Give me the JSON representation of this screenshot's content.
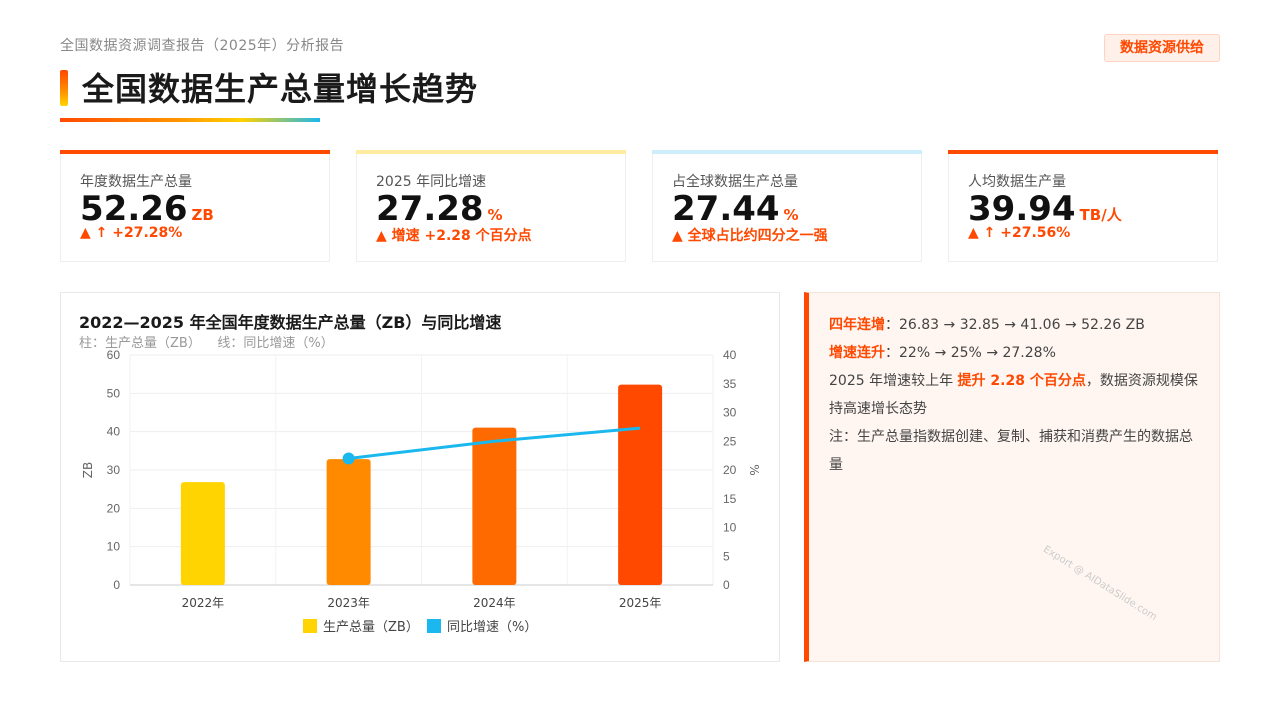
{
  "header": {
    "subtitle": "全国数据资源调查报告（2025年）分析报告",
    "title": "全国数据生产总量增长趋势",
    "tag": "数据资源供给"
  },
  "kpis": [
    {
      "label": "年度数据生产总量",
      "value": "52.26",
      "unit": "ZB",
      "note": "▲ ↑ +27.28%",
      "accent": "#ff4800",
      "tint": "#ffe9df"
    },
    {
      "label": "2025 年同比增速",
      "value": "27.28",
      "unit": "%",
      "note": "▲ 增速 +2.28 个百分点",
      "accent": "#ffeca0",
      "tint": "#fff4cc"
    },
    {
      "label": "占全球数据生产总量",
      "value": "27.44",
      "unit": "%",
      "note": "▲ 全球占比约四分之一强",
      "accent": "#cdeefa",
      "tint": "#e3f6fd"
    },
    {
      "label": "人均数据生产量",
      "value": "39.94",
      "unit": "TB/人",
      "note": "▲ ↑ +27.56%",
      "accent": "#ff4800",
      "tint": "#ffe9df"
    }
  ],
  "chart_data": {
    "type": "bar",
    "title": "2022—2025 年全国年度数据生产总量（ZB）与同比增速",
    "subtitle": "柱：生产总量（ZB）    线：同比增速（%）",
    "categories": [
      "2022年",
      "2023年",
      "2024年",
      "2025年"
    ],
    "series": [
      {
        "name": "生产总量（ZB）",
        "type": "bar",
        "axis": "left",
        "values": [
          26.83,
          32.85,
          41.06,
          52.26
        ],
        "colors": [
          "#ffd400",
          "#ff8a00",
          "#ff6a00",
          "#ff4800"
        ],
        "legend_color": "#ffd400"
      },
      {
        "name": "同比增速（%）",
        "type": "line",
        "axis": "right",
        "values": [
          null,
          22,
          25,
          27.28
        ],
        "color": "#1ab8ee"
      }
    ],
    "ylabel": "ZB",
    "y2label": "%",
    "ylim": [
      0,
      60
    ],
    "y2lim": [
      0,
      40
    ],
    "yticks": [
      "0",
      "10",
      "20",
      "30",
      "40",
      "50",
      "60"
    ],
    "y2ticks": [
      "0",
      "5",
      "10",
      "15",
      "20",
      "25",
      "30",
      "35",
      "40"
    ],
    "grid": true,
    "legend_position": "bottom"
  },
  "notes": {
    "line1_key": "四年连增",
    "line1_text": "：26.83 → 32.85 → 41.06 → 52.26 ZB",
    "line2_key": "增速连升",
    "line2_text": "：22% → 25% → 27.28%",
    "line3_pre": "2025 年增速较上年 ",
    "line3_key": "提升 2.28 个百分点",
    "line3_post": "，数据资源规模保持高速增长态势",
    "line4": "注：生产总量指数据创建、复制、捕获和消费产生的数据总量"
  },
  "watermark": "Export @ AIDataSlide.com"
}
